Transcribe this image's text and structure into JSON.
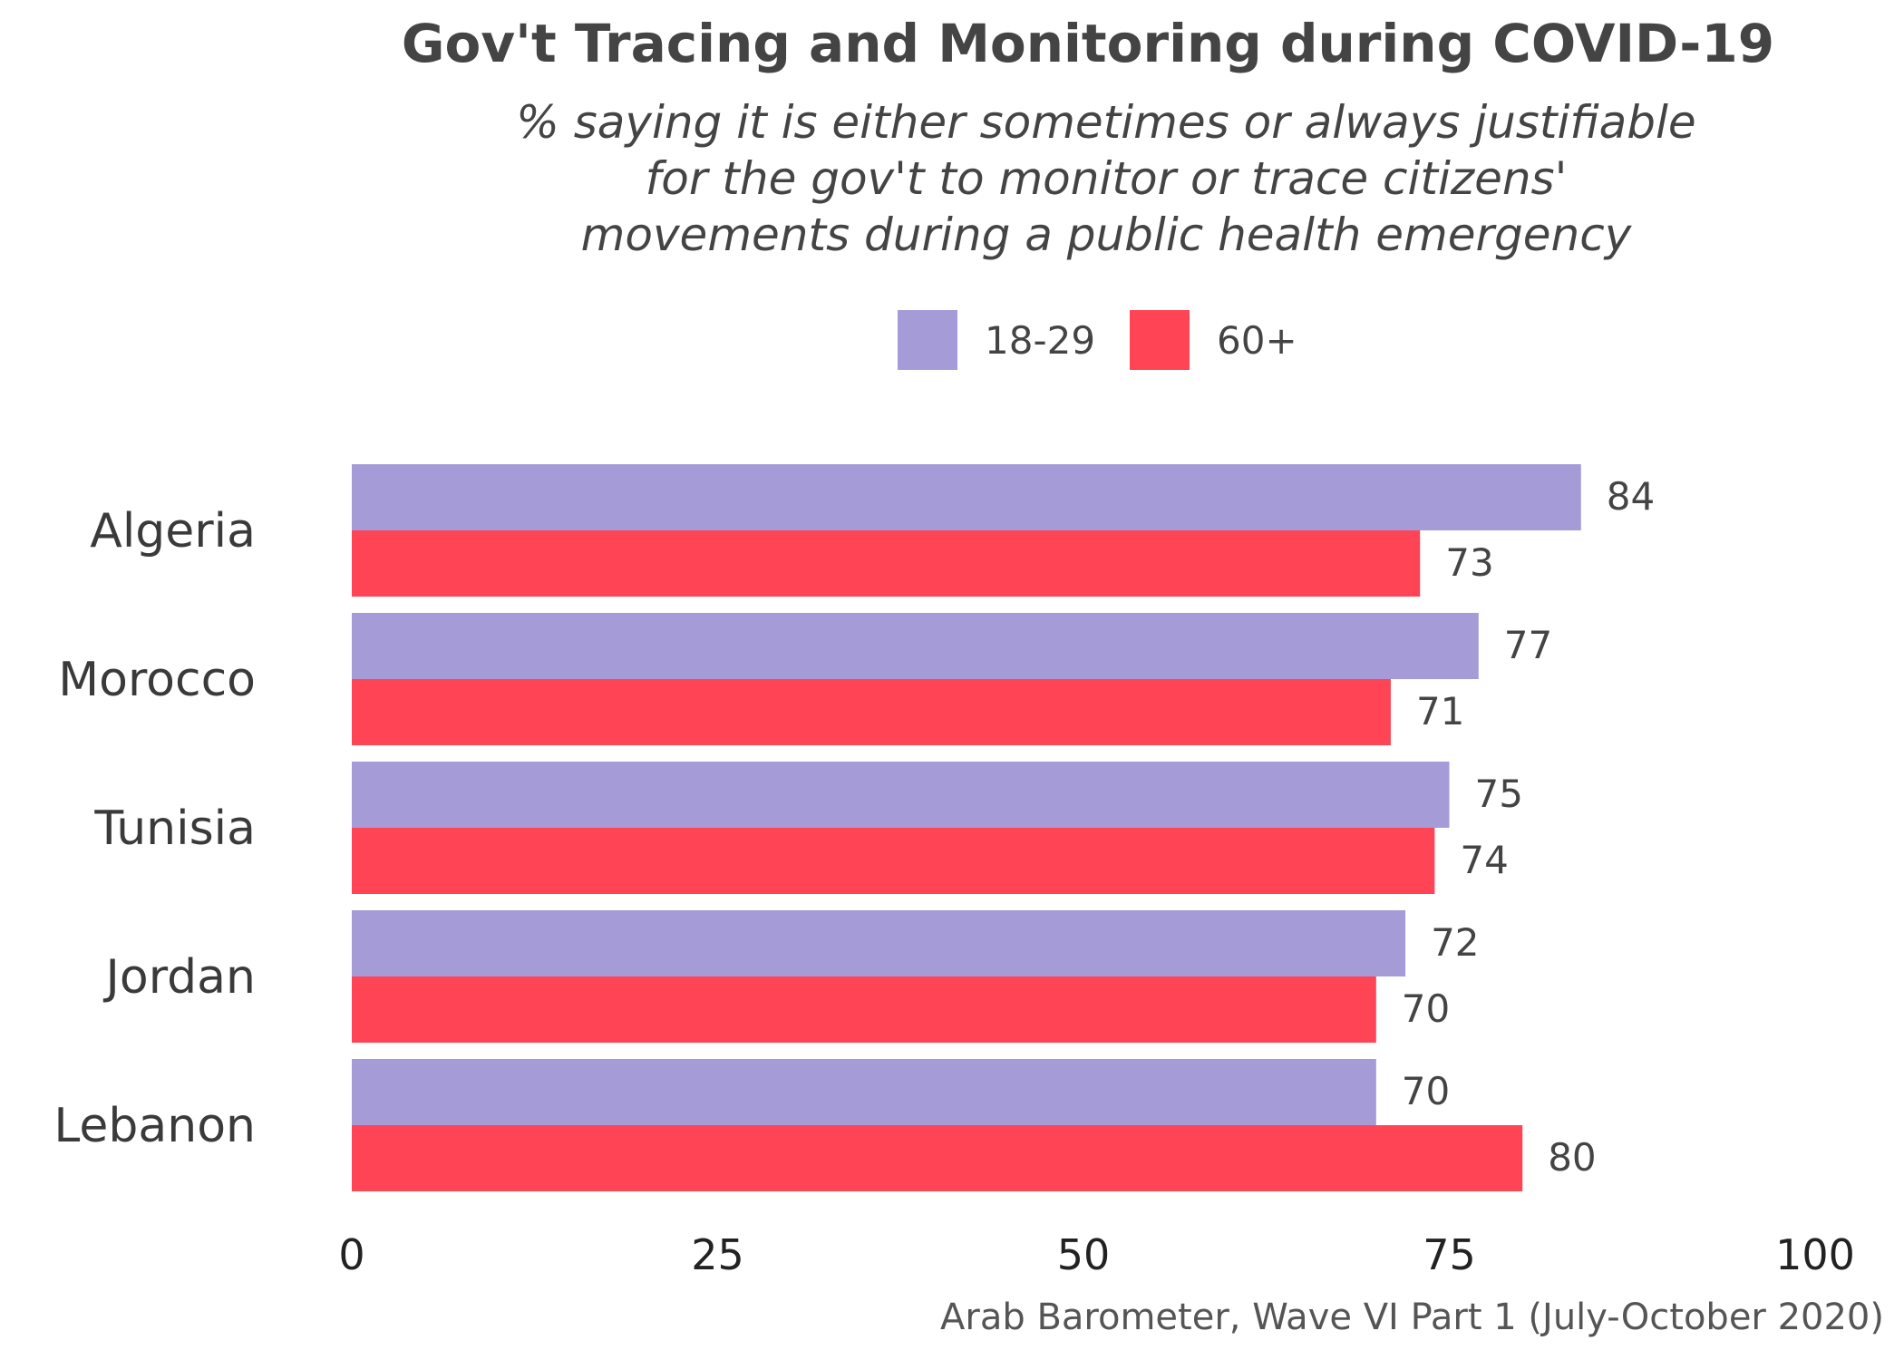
{
  "chart_data": {
    "type": "bar",
    "orientation": "horizontal",
    "title": "Gov't Tracing and Monitoring during COVID-19",
    "subtitle_lines": [
      "% saying it is either sometimes or always justifiable",
      "for the gov't to monitor or trace citizens'",
      "movements during a public health emergency"
    ],
    "categories": [
      "Algeria",
      "Morocco",
      "Tunisia",
      "Jordan",
      "Lebanon"
    ],
    "series": [
      {
        "name": "18-29",
        "color": "#a59bd7",
        "values": [
          84,
          77,
          75,
          72,
          70
        ]
      },
      {
        "name": "60+",
        "color": "#ff4455",
        "values": [
          73,
          71,
          74,
          70,
          80
        ]
      }
    ],
    "xlim": [
      0,
      100
    ],
    "xticks": [
      "0",
      "25",
      "50",
      "75",
      "100"
    ],
    "xlabel": "",
    "ylabel": "",
    "grid": false,
    "legend_position": "top",
    "source": "Arab Barometer, Wave VI Part 1 (July-October 2020)"
  }
}
